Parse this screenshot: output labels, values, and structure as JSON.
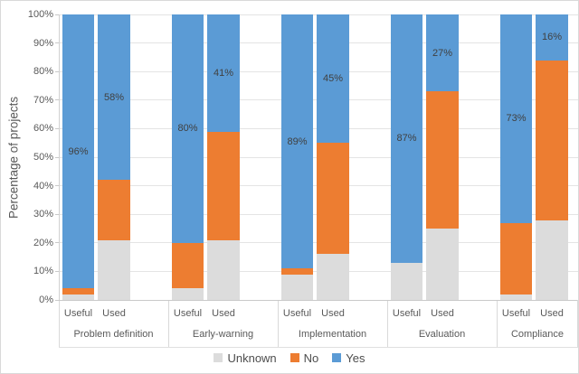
{
  "figure": {
    "background": "#FFFFFF",
    "border_color": "#D9D9D9"
  },
  "chart_data": {
    "type": "bar",
    "variant": "stacked-100-percent",
    "title": "",
    "xlabel": "",
    "ylabel": "Percentage of projects",
    "ylim": [
      0,
      100
    ],
    "y_tick_labels": [
      "0%",
      "10%",
      "20%",
      "30%",
      "40%",
      "50%",
      "60%",
      "70%",
      "80%",
      "90%",
      "100%"
    ],
    "grid": "horizontal",
    "legend_position": "bottom-center",
    "series_order": [
      "Unknown",
      "No",
      "Yes"
    ],
    "legend": [
      {
        "label": "Unknown",
        "color": "#DCDCDC"
      },
      {
        "label": "No",
        "color": "#ED7D31"
      },
      {
        "label": "Yes",
        "color": "#5B9BD5"
      }
    ],
    "data_label_series": "Yes",
    "groups": [
      {
        "label": "Problem definition",
        "bars": [
          {
            "label": "Useful",
            "values": {
              "Unknown": 2,
              "No": 2,
              "Yes": 96
            },
            "data_label": "96%"
          },
          {
            "label": "Used",
            "values": {
              "Unknown": 21,
              "No": 21,
              "Yes": 58
            },
            "data_label": "58%"
          }
        ]
      },
      {
        "label": "Early-warning",
        "bars": [
          {
            "label": "Useful",
            "values": {
              "Unknown": 4,
              "No": 16,
              "Yes": 80
            },
            "data_label": "80%"
          },
          {
            "label": "Used",
            "values": {
              "Unknown": 21,
              "No": 38,
              "Yes": 41
            },
            "data_label": "41%"
          }
        ]
      },
      {
        "label": "Implementation",
        "bars": [
          {
            "label": "Useful",
            "values": {
              "Unknown": 9,
              "No": 2,
              "Yes": 89
            },
            "data_label": "89%"
          },
          {
            "label": "Used",
            "values": {
              "Unknown": 16,
              "No": 39,
              "Yes": 45
            },
            "data_label": "45%"
          }
        ]
      },
      {
        "label": "Evaluation",
        "bars": [
          {
            "label": "Useful",
            "values": {
              "Unknown": 13,
              "No": 0,
              "Yes": 87
            },
            "data_label": "87%"
          },
          {
            "label": "Used",
            "values": {
              "Unknown": 25,
              "No": 48,
              "Yes": 27
            },
            "data_label": "27%"
          }
        ]
      },
      {
        "label": "Compliance",
        "bars": [
          {
            "label": "Useful",
            "values": {
              "Unknown": 2,
              "No": 25,
              "Yes": 73
            },
            "data_label": "73%"
          },
          {
            "label": "Used",
            "values": {
              "Unknown": 28,
              "No": 56,
              "Yes": 16
            },
            "data_label": "16%"
          }
        ]
      }
    ],
    "colors": {
      "gridline": "#E4E4E4",
      "axis_line": "#C9C9C9",
      "tick_text": "#595959",
      "data_label_text": "#404040"
    }
  }
}
